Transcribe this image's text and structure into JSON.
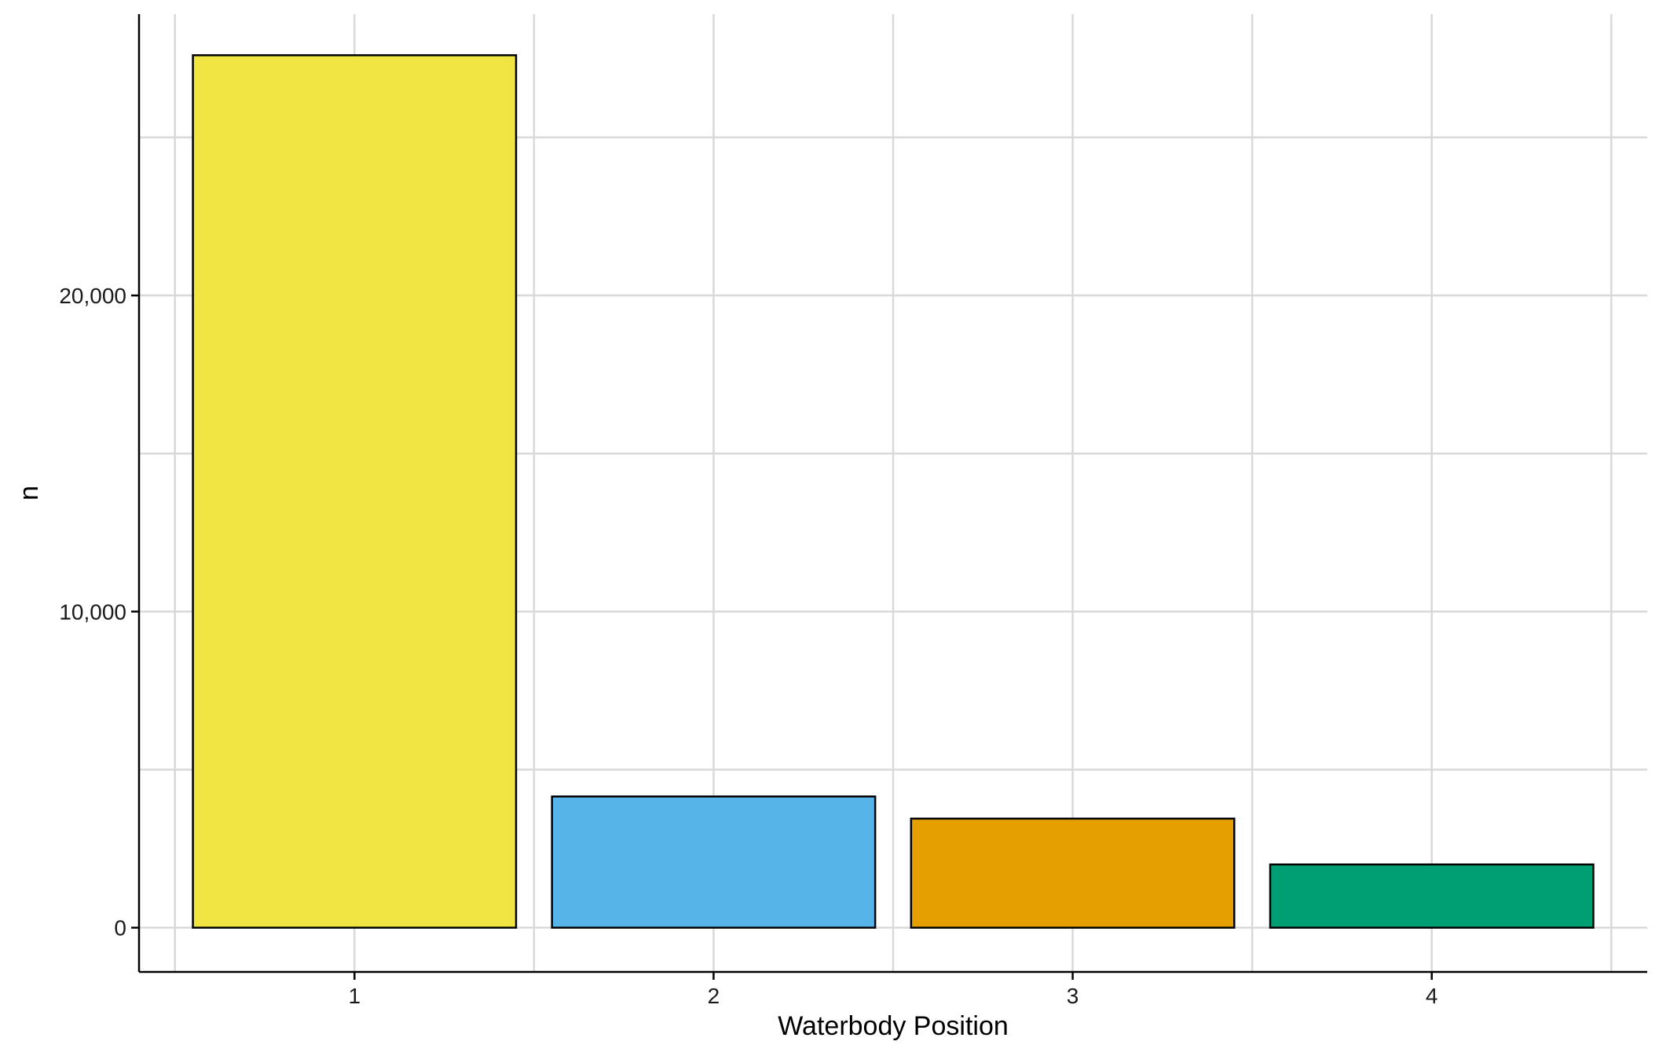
{
  "chart_data": {
    "type": "bar",
    "categories": [
      "1",
      "2",
      "3",
      "4"
    ],
    "values": [
      27600,
      4150,
      3450,
      2000
    ],
    "colors": [
      "#F0E442",
      "#56B4E9",
      "#E69F00",
      "#009E73"
    ],
    "bar_outline_color": "#000000",
    "xlabel": "Waterbody Position",
    "ylabel": "n",
    "ylim": [
      -1400,
      28900
    ],
    "yticks": [
      0,
      10000,
      20000
    ],
    "ytick_labels": [
      "0",
      "10,000",
      "20,000"
    ],
    "y_minor_gridlines": [
      5000,
      15000,
      25000
    ],
    "grid": true,
    "grid_color": "#d9d9d9",
    "legend": "none"
  }
}
